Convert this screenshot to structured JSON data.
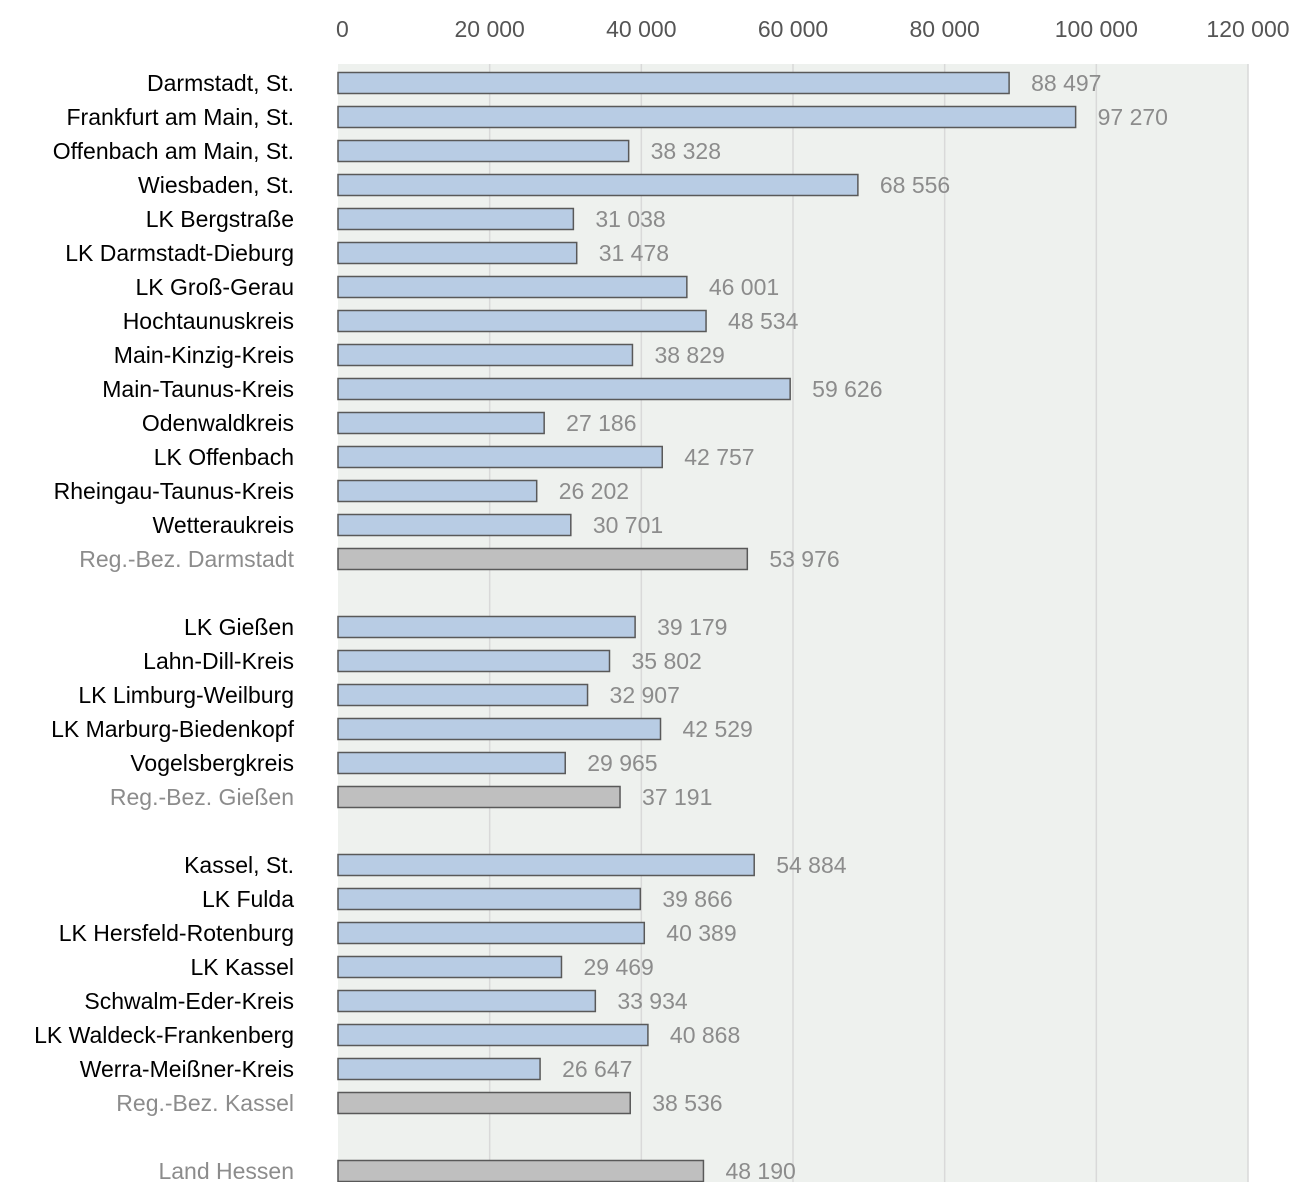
{
  "chart_data": {
    "type": "bar",
    "orientation": "horizontal",
    "xlim": [
      0,
      120000
    ],
    "ticks": [
      0,
      20000,
      40000,
      60000,
      80000,
      100000,
      120000
    ],
    "tick_labels": [
      "0",
      "20 000",
      "40 000",
      "60 000",
      "80 000",
      "100 000",
      "120 000"
    ],
    "axis_position": "top",
    "grid": true,
    "colors": {
      "district": "#b8cce4",
      "aggregate": "#bfbfbf",
      "bar_border": "#595959",
      "plot_background": "#eef1ee",
      "grid": "#d9d9d9",
      "district_label": "#000000",
      "aggregate_label": "#8c8c8c"
    },
    "groups": [
      {
        "items": [
          {
            "category": "Darmstadt, St.",
            "value": 88497,
            "value_label": "88 497",
            "kind": "district"
          },
          {
            "category": "Frankfurt am Main, St.",
            "value": 97270,
            "value_label": "97 270",
            "kind": "district"
          },
          {
            "category": "Offenbach am Main, St.",
            "value": 38328,
            "value_label": "38 328",
            "kind": "district"
          },
          {
            "category": "Wiesbaden, St.",
            "value": 68556,
            "value_label": "68 556",
            "kind": "district"
          },
          {
            "category": "LK Bergstraße",
            "value": 31038,
            "value_label": "31 038",
            "kind": "district"
          },
          {
            "category": "LK Darmstadt-Dieburg",
            "value": 31478,
            "value_label": "31 478",
            "kind": "district"
          },
          {
            "category": "LK Groß-Gerau",
            "value": 46001,
            "value_label": "46 001",
            "kind": "district"
          },
          {
            "category": "Hochtaunuskreis",
            "value": 48534,
            "value_label": "48 534",
            "kind": "district"
          },
          {
            "category": "Main-Kinzig-Kreis",
            "value": 38829,
            "value_label": "38 829",
            "kind": "district"
          },
          {
            "category": "Main-Taunus-Kreis",
            "value": 59626,
            "value_label": "59 626",
            "kind": "district"
          },
          {
            "category": "Odenwaldkreis",
            "value": 27186,
            "value_label": "27 186",
            "kind": "district"
          },
          {
            "category": "LK Offenbach",
            "value": 42757,
            "value_label": "42 757",
            "kind": "district"
          },
          {
            "category": "Rheingau-Taunus-Kreis",
            "value": 26202,
            "value_label": "26 202",
            "kind": "district"
          },
          {
            "category": "Wetteraukreis",
            "value": 30701,
            "value_label": "30 701",
            "kind": "district"
          },
          {
            "category": "Reg.-Bez. Darmstadt",
            "value": 53976,
            "value_label": "53 976",
            "kind": "aggregate"
          }
        ]
      },
      {
        "items": [
          {
            "category": "LK Gießen",
            "value": 39179,
            "value_label": "39 179",
            "kind": "district"
          },
          {
            "category": "Lahn-Dill-Kreis",
            "value": 35802,
            "value_label": "35 802",
            "kind": "district"
          },
          {
            "category": "LK Limburg-Weilburg",
            "value": 32907,
            "value_label": "32 907",
            "kind": "district"
          },
          {
            "category": "LK Marburg-Biedenkopf",
            "value": 42529,
            "value_label": "42 529",
            "kind": "district"
          },
          {
            "category": "Vogelsbergkreis",
            "value": 29965,
            "value_label": "29 965",
            "kind": "district"
          },
          {
            "category": "Reg.-Bez. Gießen",
            "value": 37191,
            "value_label": "37 191",
            "kind": "aggregate"
          }
        ]
      },
      {
        "items": [
          {
            "category": "Kassel, St.",
            "value": 54884,
            "value_label": "54 884",
            "kind": "district"
          },
          {
            "category": "LK Fulda",
            "value": 39866,
            "value_label": "39 866",
            "kind": "district"
          },
          {
            "category": "LK Hersfeld-Rotenburg",
            "value": 40389,
            "value_label": "40 389",
            "kind": "district"
          },
          {
            "category": "LK Kassel",
            "value": 29469,
            "value_label": "29 469",
            "kind": "district"
          },
          {
            "category": "Schwalm-Eder-Kreis",
            "value": 33934,
            "value_label": "33 934",
            "kind": "district"
          },
          {
            "category": "LK Waldeck-Frankenberg",
            "value": 40868,
            "value_label": "40 868",
            "kind": "district"
          },
          {
            "category": "Werra-Meißner-Kreis",
            "value": 26647,
            "value_label": "26 647",
            "kind": "district"
          },
          {
            "category": "Reg.-Bez. Kassel",
            "value": 38536,
            "value_label": "38 536",
            "kind": "aggregate"
          }
        ]
      },
      {
        "items": [
          {
            "category": "Land Hessen",
            "value": 48190,
            "value_label": "48 190",
            "kind": "aggregate"
          }
        ]
      }
    ]
  }
}
